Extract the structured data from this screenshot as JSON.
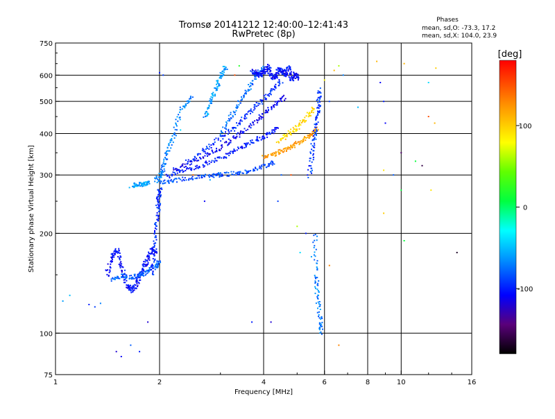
{
  "chart_data": {
    "type": "scatter",
    "title": "Tromsø 20141212 12:40:00–12:41:43",
    "subtitle": "RwPretec (8p)",
    "xlabel": "Frequency [MHz]",
    "ylabel": "Stationary phase Virtual Height [km]",
    "x_scale": "log",
    "y_scale": "log",
    "xlim": [
      1,
      16
    ],
    "ylim": [
      75,
      750
    ],
    "x_ticks": [
      "1",
      "2",
      "4",
      "6",
      "8",
      "10",
      "16"
    ],
    "x_tick_values": [
      1,
      2,
      4,
      6,
      8,
      10,
      16
    ],
    "y_ticks": [
      "75",
      "100",
      "200",
      "300",
      "400",
      "500",
      "600",
      "750"
    ],
    "y_tick_values": [
      75,
      100,
      200,
      300,
      400,
      500,
      600,
      750
    ],
    "x_grid": [
      2,
      4,
      6,
      8,
      10
    ],
    "y_grid": [
      100,
      200,
      300,
      400,
      500,
      600
    ],
    "grid": true,
    "phase_info": {
      "heading": "Phases",
      "line_o": "mean, sd,O: -73.3, 17.2",
      "line_x": "mean, sd,X: 104.0, 23.9"
    },
    "colorbar": {
      "label": "[deg]",
      "range": [
        -180,
        180
      ],
      "ticks": [
        "100",
        "0",
        "-100"
      ],
      "tick_values": [
        100,
        0,
        -100
      ]
    },
    "traces": [
      {
        "f": [
          1.4,
          1.45,
          1.5,
          1.55,
          1.6,
          1.65,
          1.7,
          1.75,
          1.8,
          1.85,
          1.9,
          1.95
        ],
        "h": [
          150,
          170,
          180,
          160,
          140,
          135,
          140,
          150,
          160,
          170,
          180,
          175
        ],
        "phase": -105
      },
      {
        "f": [
          1.45,
          1.55,
          1.65,
          1.75,
          1.85,
          1.95,
          1.98
        ],
        "h": [
          145,
          150,
          148,
          150,
          155,
          160,
          165
        ],
        "phase": -80
      },
      {
        "f": [
          1.9,
          1.93,
          1.95,
          1.97,
          1.98,
          2.0
        ],
        "h": [
          150,
          180,
          210,
          240,
          260,
          275
        ],
        "phase": -95
      },
      {
        "f": [
          1.65,
          1.75,
          1.8,
          1.85
        ],
        "h": [
          280,
          282,
          283,
          285
        ],
        "phase": -60
      },
      {
        "f": [
          1.95,
          2.0,
          2.05,
          2.1,
          2.2,
          2.3,
          2.5
        ],
        "h": [
          290,
          300,
          320,
          360,
          400,
          480,
          520
        ],
        "phase": -70
      },
      {
        "f": [
          2.0,
          2.2,
          2.5,
          2.8,
          3.0,
          3.3,
          3.6,
          4.0,
          4.3
        ],
        "h": [
          285,
          290,
          295,
          300,
          302,
          305,
          310,
          320,
          330
        ],
        "phase": -85
      },
      {
        "f": [
          2.1,
          2.3,
          2.6,
          2.9,
          3.2,
          3.5,
          3.8,
          4.1,
          4.4
        ],
        "h": [
          300,
          310,
          320,
          335,
          350,
          370,
          385,
          400,
          420
        ],
        "phase": -100
      },
      {
        "f": [
          2.2,
          2.5,
          2.8,
          3.1,
          3.4,
          3.7,
          4.0,
          4.3,
          4.6
        ],
        "h": [
          315,
          330,
          350,
          375,
          400,
          430,
          460,
          490,
          520
        ],
        "phase": -110
      },
      {
        "f": [
          2.4,
          2.7,
          3.0,
          3.3,
          3.6,
          3.9,
          4.2,
          4.5
        ],
        "h": [
          330,
          360,
          390,
          420,
          460,
          500,
          540,
          580
        ],
        "phase": -95
      },
      {
        "f": [
          3.0,
          3.2,
          3.4,
          3.6,
          3.8,
          4.0
        ],
        "h": [
          400,
          450,
          500,
          550,
          600,
          640
        ],
        "phase": -75
      },
      {
        "f": [
          2.7,
          2.8,
          2.9,
          3.0,
          3.1
        ],
        "h": [
          450,
          500,
          550,
          600,
          640
        ],
        "phase": -60
      },
      {
        "f": [
          4.0,
          4.3,
          4.6,
          4.9,
          5.2,
          5.5,
          5.7
        ],
        "h": [
          340,
          350,
          360,
          370,
          385,
          400,
          420
        ],
        "phase": 120
      },
      {
        "f": [
          4.4,
          4.7,
          5.0,
          5.3,
          5.6
        ],
        "h": [
          380,
          400,
          420,
          450,
          480
        ],
        "phase": 95
      },
      {
        "f": [
          3.7,
          3.8,
          3.9,
          4.0,
          4.1,
          4.2,
          4.3,
          4.4,
          4.5,
          4.6,
          4.7,
          4.8,
          4.9,
          5.0
        ],
        "h": [
          620,
          610,
          600,
          620,
          640,
          600,
          590,
          630,
          620,
          600,
          640,
          580,
          610,
          590
        ],
        "phase": -105
      },
      {
        "f": [
          5.4,
          5.5,
          5.6,
          5.7,
          5.75,
          5.8
        ],
        "h": [
          300,
          350,
          400,
          450,
          500,
          550
        ],
        "phase": -90
      },
      {
        "f": [
          5.6,
          5.65,
          5.7,
          5.8,
          5.85
        ],
        "h": [
          200,
          150,
          130,
          110,
          100
        ],
        "phase": -70
      }
    ],
    "scatter_points": [
      {
        "f": 1.05,
        "h": 125,
        "phase": -60
      },
      {
        "f": 1.1,
        "h": 130,
        "phase": -50
      },
      {
        "f": 1.25,
        "h": 122,
        "phase": -100
      },
      {
        "f": 1.3,
        "h": 120,
        "phase": -90
      },
      {
        "f": 1.35,
        "h": 123,
        "phase": -70
      },
      {
        "f": 1.5,
        "h": 88,
        "phase": -120
      },
      {
        "f": 1.55,
        "h": 85,
        "phase": -110
      },
      {
        "f": 1.65,
        "h": 92,
        "phase": -80
      },
      {
        "f": 1.75,
        "h": 88,
        "phase": -100
      },
      {
        "f": 1.85,
        "h": 108,
        "phase": -120
      },
      {
        "f": 2.0,
        "h": 610,
        "phase": -100
      },
      {
        "f": 2.05,
        "h": 600,
        "phase": -90
      },
      {
        "f": 2.3,
        "h": 410,
        "phase": -40
      },
      {
        "f": 2.5,
        "h": 300,
        "phase": 140
      },
      {
        "f": 2.7,
        "h": 250,
        "phase": -110
      },
      {
        "f": 2.8,
        "h": 290,
        "phase": -60
      },
      {
        "f": 3.3,
        "h": 600,
        "phase": 150
      },
      {
        "f": 3.4,
        "h": 640,
        "phase": 20
      },
      {
        "f": 3.7,
        "h": 108,
        "phase": -100
      },
      {
        "f": 4.2,
        "h": 108,
        "phase": -120
      },
      {
        "f": 4.4,
        "h": 250,
        "phase": -90
      },
      {
        "f": 4.5,
        "h": 300,
        "phase": -80
      },
      {
        "f": 4.8,
        "h": 300,
        "phase": 150
      },
      {
        "f": 5.0,
        "h": 210,
        "phase": 60
      },
      {
        "f": 5.1,
        "h": 175,
        "phase": -40
      },
      {
        "f": 5.3,
        "h": 200,
        "phase": -100
      },
      {
        "f": 5.5,
        "h": 170,
        "phase": -60
      },
      {
        "f": 6.0,
        "h": 580,
        "phase": 80
      },
      {
        "f": 6.2,
        "h": 500,
        "phase": -90
      },
      {
        "f": 6.4,
        "h": 620,
        "phase": 110
      },
      {
        "f": 6.6,
        "h": 640,
        "phase": 60
      },
      {
        "f": 6.8,
        "h": 600,
        "phase": -70
      },
      {
        "f": 6.2,
        "h": 160,
        "phase": 130
      },
      {
        "f": 6.6,
        "h": 92,
        "phase": 130
      },
      {
        "f": 7.5,
        "h": 480,
        "phase": -50
      },
      {
        "f": 8.5,
        "h": 660,
        "phase": 110
      },
      {
        "f": 8.7,
        "h": 570,
        "phase": -110
      },
      {
        "f": 8.9,
        "h": 500,
        "phase": -100
      },
      {
        "f": 9.0,
        "h": 430,
        "phase": -110
      },
      {
        "f": 8.9,
        "h": 310,
        "phase": 90
      },
      {
        "f": 8.9,
        "h": 230,
        "phase": 100
      },
      {
        "f": 9.5,
        "h": 300,
        "phase": -80
      },
      {
        "f": 10.2,
        "h": 650,
        "phase": 110
      },
      {
        "f": 10.0,
        "h": 350,
        "phase": -150
      },
      {
        "f": 10.0,
        "h": 270,
        "phase": 10
      },
      {
        "f": 10.2,
        "h": 190,
        "phase": 10
      },
      {
        "f": 11.0,
        "h": 330,
        "phase": 10
      },
      {
        "f": 11.5,
        "h": 320,
        "phase": -160
      },
      {
        "f": 12.0,
        "h": 570,
        "phase": -40
      },
      {
        "f": 12.0,
        "h": 450,
        "phase": 150
      },
      {
        "f": 12.2,
        "h": 270,
        "phase": 90
      },
      {
        "f": 12.5,
        "h": 430,
        "phase": 110
      },
      {
        "f": 12.6,
        "h": 630,
        "phase": 100
      },
      {
        "f": 14.5,
        "h": 175,
        "phase": -170
      }
    ]
  }
}
